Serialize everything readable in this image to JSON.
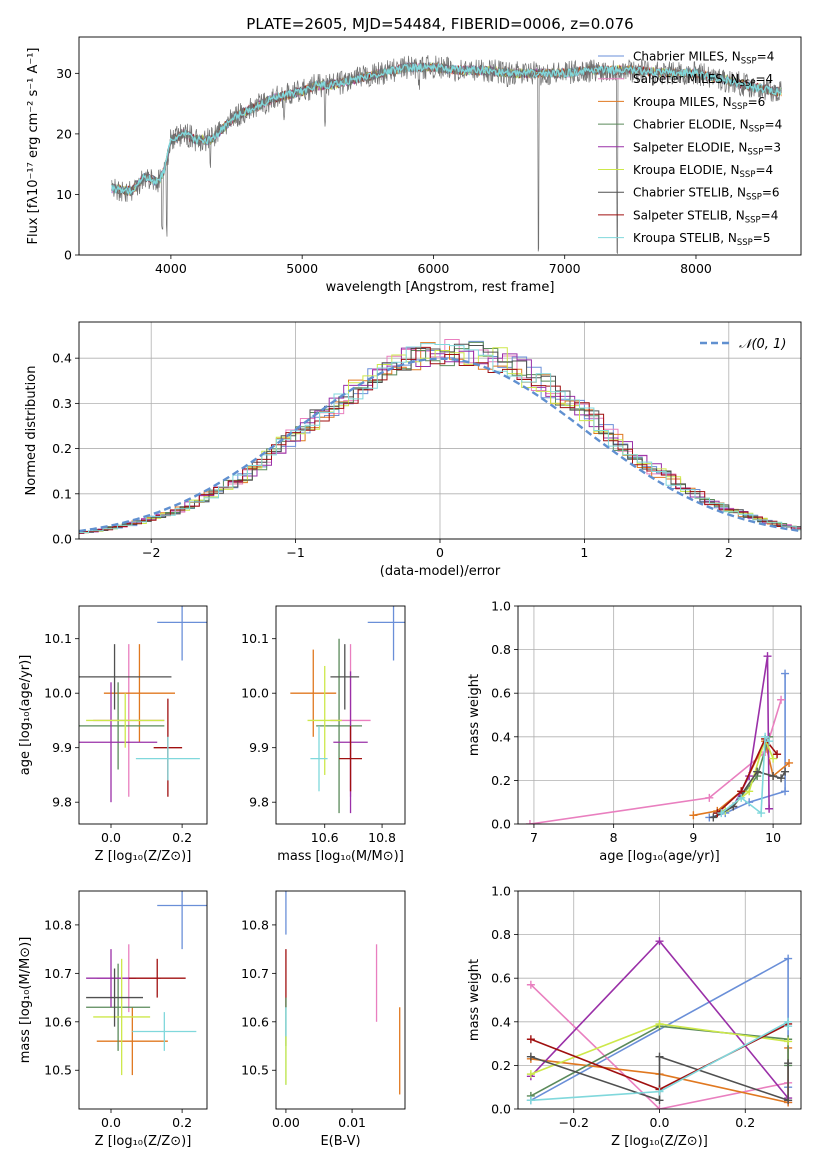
{
  "figure_title": "PLATE=2605, MJD=54484, FIBERID=0006, z=0.076",
  "colors": {
    "chabrier_miles": "#6a8fd8",
    "salpeter_miles": "#e97fbf",
    "kroupa_miles": "#e07820",
    "chabrier_elodie": "#5a8a5a",
    "salpeter_elodie": "#9a30a8",
    "kroupa_elodie": "#cde84a",
    "chabrier_stelib": "#505050",
    "salpeter_stelib": "#a01010",
    "kroupa_stelib": "#80d8dc",
    "gaussian": "#6090d0"
  },
  "chart_data": [
    {
      "type": "line",
      "id": "spectrum",
      "title": "PLATE=2605, MJD=54484, FIBERID=0006, z=0.076",
      "xlabel": "wavelength [Angstrom, rest frame]",
      "ylabel": "Flux [fλ10⁻¹⁷ erg cm⁻² s⁻¹ A⁻¹]",
      "xlim": [
        3300,
        8800
      ],
      "ylim": [
        0,
        36
      ],
      "xticks": [
        4000,
        5000,
        6000,
        7000,
        8000
      ],
      "yticks": [
        0,
        10,
        20,
        30
      ],
      "legend_position": "top-right",
      "legend": [
        {
          "label": "Chabrier MILES, N",
          "sub": "SSP",
          "suffix": "=4",
          "color_key": "chabrier_miles"
        },
        {
          "label": "Salpeter MILES, N",
          "sub": "SSP",
          "suffix": "=4",
          "color_key": "salpeter_miles"
        },
        {
          "label": "Kroupa MILES, N",
          "sub": "SSP",
          "suffix": "=6",
          "color_key": "kroupa_miles"
        },
        {
          "label": "Chabrier ELODIE, N",
          "sub": "SSP",
          "suffix": "=4",
          "color_key": "chabrier_elodie"
        },
        {
          "label": "Salpeter ELODIE, N",
          "sub": "SSP",
          "suffix": "=3",
          "color_key": "salpeter_elodie"
        },
        {
          "label": "Kroupa ELODIE, N",
          "sub": "SSP",
          "suffix": "=4",
          "color_key": "kroupa_elodie"
        },
        {
          "label": "Chabrier STELIB, N",
          "sub": "SSP",
          "suffix": "=6",
          "color_key": "chabrier_stelib"
        },
        {
          "label": "Salpeter STELIB, N",
          "sub": "SSP",
          "suffix": "=4",
          "color_key": "salpeter_stelib"
        },
        {
          "label": "Kroupa STELIB, N",
          "sub": "SSP",
          "suffix": "=5",
          "color_key": "kroupa_stelib"
        }
      ],
      "continuum": [
        [
          3550,
          11
        ],
        [
          3700,
          10.5
        ],
        [
          3800,
          13
        ],
        [
          3900,
          12
        ],
        [
          3950,
          14
        ],
        [
          4000,
          19
        ],
        [
          4100,
          20
        ],
        [
          4200,
          19
        ],
        [
          4300,
          19
        ],
        [
          4400,
          21
        ],
        [
          4500,
          23
        ],
        [
          4600,
          24
        ],
        [
          4700,
          25
        ],
        [
          4800,
          26
        ],
        [
          4900,
          26.5
        ],
        [
          5000,
          27
        ],
        [
          5100,
          28
        ],
        [
          5200,
          28
        ],
        [
          5400,
          29
        ],
        [
          5600,
          30
        ],
        [
          5800,
          31
        ],
        [
          6000,
          31
        ],
        [
          6200,
          30.5
        ],
        [
          6400,
          30.5
        ],
        [
          6600,
          30
        ],
        [
          6800,
          30
        ],
        [
          7000,
          30
        ],
        [
          7200,
          30.5
        ],
        [
          7500,
          30.5
        ],
        [
          7800,
          30
        ],
        [
          8000,
          30
        ],
        [
          8200,
          29
        ],
        [
          8400,
          28
        ],
        [
          8600,
          27
        ]
      ],
      "features": [
        [
          3934,
          3
        ],
        [
          3968,
          3
        ],
        [
          4300,
          14
        ],
        [
          4861,
          22
        ],
        [
          5175,
          21
        ],
        [
          5890,
          27
        ],
        [
          6563,
          27
        ],
        [
          6800,
          0
        ],
        [
          7400,
          0
        ]
      ]
    },
    {
      "type": "bar",
      "id": "residuals",
      "xlabel": "(data-model)/error",
      "ylabel": "Normed distribution",
      "xlim": [
        -2.5,
        2.5
      ],
      "ylim": [
        0,
        0.48
      ],
      "xticks": [
        -2,
        -1,
        0,
        1,
        2
      ],
      "yticks": [
        0.0,
        0.1,
        0.2,
        0.3,
        0.4
      ],
      "legend_position": "top-right",
      "legend_label": "𝒩(0, 1)",
      "bin_width": 0.1
    },
    {
      "type": "scatter",
      "id": "age_vs_Z",
      "xlabel": "Z [log₁₀(Z/Z⊙)]",
      "ylabel": "age  [log₁₀(age/yr)]",
      "xlim": [
        -0.09,
        0.27
      ],
      "ylim": [
        9.76,
        10.16
      ],
      "xticks": [
        0.0,
        0.2
      ],
      "yticks": [
        9.8,
        9.9,
        10.0,
        10.1
      ],
      "points": [
        {
          "x": 0.2,
          "y": 10.13,
          "ex": 0.07,
          "ey": 0.07,
          "c": "chabrier_miles"
        },
        {
          "x": 0.05,
          "y": 9.95,
          "ex": 0.1,
          "ey": 0.14,
          "c": "salpeter_miles"
        },
        {
          "x": 0.08,
          "y": 10.0,
          "ex": 0.1,
          "ey": 0.09,
          "c": "kroupa_miles"
        },
        {
          "x": 0.02,
          "y": 9.94,
          "ex": 0.13,
          "ey": 0.08,
          "c": "chabrier_elodie"
        },
        {
          "x": 0.0,
          "y": 9.91,
          "ex": 0.13,
          "ey": 0.11,
          "c": "salpeter_elodie"
        },
        {
          "x": 0.04,
          "y": 9.95,
          "ex": 0.11,
          "ey": 0.05,
          "c": "kroupa_elodie"
        },
        {
          "x": 0.01,
          "y": 10.03,
          "ex": 0.16,
          "ey": 0.06,
          "c": "chabrier_stelib"
        },
        {
          "x": 0.16,
          "y": 9.9,
          "ex": 0.04,
          "ey": 0.09,
          "c": "salpeter_stelib"
        },
        {
          "x": 0.16,
          "y": 9.88,
          "ex": 0.09,
          "ey": 0.04,
          "c": "kroupa_stelib"
        }
      ]
    },
    {
      "type": "scatter",
      "id": "age_vs_mass",
      "xlabel": "mass [log₁₀(M/M⊙)]",
      "ylabel": "",
      "xlim": [
        10.43,
        10.88
      ],
      "ylim": [
        9.76,
        10.16
      ],
      "xticks": [
        10.6,
        10.8
      ],
      "yticks": [
        9.8,
        9.9,
        10.0,
        10.1
      ],
      "points": [
        {
          "x": 10.84,
          "y": 10.13,
          "ex": 0.09,
          "ey": 0.07,
          "c": "chabrier_miles"
        },
        {
          "x": 10.69,
          "y": 9.95,
          "ex": 0.07,
          "ey": 0.14,
          "c": "salpeter_miles"
        },
        {
          "x": 10.56,
          "y": 10.0,
          "ex": 0.08,
          "ey": 0.08,
          "c": "kroupa_miles"
        },
        {
          "x": 10.65,
          "y": 9.94,
          "ex": 0.08,
          "ey": 0.16,
          "c": "chabrier_elodie"
        },
        {
          "x": 10.69,
          "y": 9.91,
          "ex": 0.06,
          "ey": 0.13,
          "c": "salpeter_elodie"
        },
        {
          "x": 10.6,
          "y": 9.95,
          "ex": 0.06,
          "ey": 0.1,
          "c": "kroupa_elodie"
        },
        {
          "x": 10.67,
          "y": 10.03,
          "ex": 0.05,
          "ey": 0.06,
          "c": "chabrier_stelib"
        },
        {
          "x": 10.69,
          "y": 9.88,
          "ex": 0.04,
          "ey": 0.06,
          "c": "salpeter_stelib"
        },
        {
          "x": 10.58,
          "y": 9.88,
          "ex": 0.03,
          "ey": 0.06,
          "c": "kroupa_stelib"
        }
      ]
    },
    {
      "type": "line",
      "id": "mass_weight_vs_age",
      "xlabel": "age  [log₁₀(age/yr)]",
      "ylabel": "mass weight",
      "xlim": [
        6.8,
        10.35
      ],
      "ylim": [
        0,
        1.0
      ],
      "xticks": [
        7,
        8,
        9,
        10
      ],
      "yticks": [
        0.0,
        0.2,
        0.4,
        0.6,
        0.8,
        1.0
      ],
      "series": [
        {
          "c": "chabrier_miles",
          "x": [
            9.2,
            9.4,
            9.7,
            10.15,
            10.15
          ],
          "y": [
            0.03,
            0.05,
            0.1,
            0.15,
            0.69
          ]
        },
        {
          "c": "salpeter_miles",
          "x": [
            6.95,
            9.2,
            9.9,
            10.1
          ],
          "y": [
            0.0,
            0.12,
            0.33,
            0.57
          ]
        },
        {
          "c": "kroupa_miles",
          "x": [
            9.0,
            9.3,
            9.6,
            9.9,
            10.0,
            10.2
          ],
          "y": [
            0.04,
            0.06,
            0.15,
            0.38,
            0.22,
            0.28
          ]
        },
        {
          "c": "chabrier_elodie",
          "x": [
            9.3,
            9.5,
            9.8,
            9.95
          ],
          "y": [
            0.05,
            0.08,
            0.22,
            0.4
          ]
        },
        {
          "c": "salpeter_elodie",
          "x": [
            9.5,
            9.7,
            9.93,
            9.95
          ],
          "y": [
            0.08,
            0.22,
            0.77,
            0.07
          ]
        },
        {
          "c": "kroupa_elodie",
          "x": [
            9.4,
            9.7,
            9.9,
            10.0
          ],
          "y": [
            0.06,
            0.15,
            0.39,
            0.3
          ]
        },
        {
          "c": "chabrier_stelib",
          "x": [
            9.25,
            9.5,
            9.8,
            10.0,
            10.1,
            10.15
          ],
          "y": [
            0.03,
            0.08,
            0.24,
            0.22,
            0.21,
            0.24
          ]
        },
        {
          "c": "salpeter_stelib",
          "x": [
            9.3,
            9.6,
            9.9,
            10.05
          ],
          "y": [
            0.05,
            0.15,
            0.39,
            0.32
          ]
        },
        {
          "c": "kroupa_stelib",
          "x": [
            9.35,
            9.6,
            9.85,
            9.9,
            9.95
          ],
          "y": [
            0.05,
            0.12,
            0.05,
            0.4,
            0.38
          ]
        }
      ]
    },
    {
      "type": "scatter",
      "id": "mass_vs_Z",
      "xlabel": "Z [log₁₀(Z/Z⊙)]",
      "ylabel": "mass [log₁₀(M/M⊙)]",
      "xlim": [
        -0.09,
        0.27
      ],
      "ylim": [
        10.42,
        10.87
      ],
      "xticks": [
        0.0,
        0.2
      ],
      "yticks": [
        10.5,
        10.6,
        10.7,
        10.8
      ],
      "points": [
        {
          "x": 0.2,
          "y": 10.84,
          "ex": 0.07,
          "ey": 0.09,
          "c": "chabrier_miles"
        },
        {
          "x": 0.05,
          "y": 10.69,
          "ex": 0.09,
          "ey": 0.07,
          "c": "salpeter_miles"
        },
        {
          "x": 0.06,
          "y": 10.56,
          "ex": 0.1,
          "ey": 0.07,
          "c": "kroupa_miles"
        },
        {
          "x": 0.02,
          "y": 10.63,
          "ex": 0.09,
          "ey": 0.09,
          "c": "chabrier_elodie"
        },
        {
          "x": 0.0,
          "y": 10.69,
          "ex": 0.07,
          "ey": 0.06,
          "c": "salpeter_elodie"
        },
        {
          "x": 0.03,
          "y": 10.61,
          "ex": 0.08,
          "ey": 0.12,
          "c": "kroupa_elodie"
        },
        {
          "x": 0.01,
          "y": 10.65,
          "ex": 0.08,
          "ey": 0.06,
          "c": "chabrier_stelib"
        },
        {
          "x": 0.13,
          "y": 10.69,
          "ex": 0.08,
          "ey": 0.04,
          "c": "salpeter_stelib"
        },
        {
          "x": 0.15,
          "y": 10.58,
          "ex": 0.09,
          "ey": 0.04,
          "c": "kroupa_stelib"
        }
      ]
    },
    {
      "type": "scatter",
      "id": "mass_vs_ebv",
      "xlabel": "E(B-V)",
      "ylabel": "",
      "xlim": [
        -0.0015,
        0.018
      ],
      "ylim": [
        10.42,
        10.87
      ],
      "xticks": [
        0.0,
        0.01
      ],
      "yticks": [
        10.5,
        10.6,
        10.7,
        10.8
      ],
      "points": [
        {
          "x": 0.0,
          "y": 10.84,
          "ex": 0,
          "ey": 0.06,
          "c": "chabrier_miles"
        },
        {
          "x": 0.0,
          "y": 10.69,
          "ex": 0,
          "ey": 0.06,
          "c": "salpeter_stelib"
        },
        {
          "x": 0.0,
          "y": 10.6,
          "ex": 0,
          "ey": 0.05,
          "c": "chabrier_elodie"
        },
        {
          "x": 0.0,
          "y": 10.55,
          "ex": 0,
          "ey": 0.08,
          "c": "kroupa_stelib"
        },
        {
          "x": 0.0,
          "y": 10.52,
          "ex": 0,
          "ey": 0.05,
          "c": "kroupa_elodie"
        },
        {
          "x": 0.0137,
          "y": 10.68,
          "ex": 0,
          "ey": 0.08,
          "c": "salpeter_miles"
        },
        {
          "x": 0.0172,
          "y": 10.54,
          "ex": 0,
          "ey": 0.09,
          "c": "kroupa_miles"
        }
      ]
    },
    {
      "type": "line",
      "id": "mass_weight_vs_Z",
      "xlabel": "Z [log₁₀(Z/Z⊙)]",
      "ylabel": "mass weight",
      "xlim": [
        -0.33,
        0.33
      ],
      "ylim": [
        0,
        1.0
      ],
      "xticks": [
        -0.2,
        0.0,
        0.2
      ],
      "yticks": [
        0.0,
        0.2,
        0.4,
        0.6,
        0.8,
        1.0
      ],
      "series": [
        {
          "c": "chabrier_miles",
          "x": [
            -0.3,
            0.3,
            0.3
          ],
          "y": [
            0.04,
            0.69,
            0.1
          ]
        },
        {
          "c": "salpeter_miles",
          "x": [
            -0.3,
            0.0,
            0.3,
            0.3
          ],
          "y": [
            0.57,
            0.0,
            0.12,
            0.03
          ]
        },
        {
          "c": "kroupa_miles",
          "x": [
            -0.3,
            0.0,
            0.3,
            0.3
          ],
          "y": [
            0.23,
            0.16,
            0.03,
            0.28
          ]
        },
        {
          "c": "chabrier_elodie",
          "x": [
            -0.3,
            0.0,
            0.3,
            0.3
          ],
          "y": [
            0.06,
            0.38,
            0.32,
            0.2
          ]
        },
        {
          "c": "salpeter_elodie",
          "x": [
            -0.3,
            0.0,
            0.3
          ],
          "y": [
            0.15,
            0.77,
            0.05
          ]
        },
        {
          "c": "kroupa_elodie",
          "x": [
            -0.3,
            0.0,
            0.3
          ],
          "y": [
            0.16,
            0.39,
            0.31
          ]
        },
        {
          "c": "chabrier_stelib",
          "x": [
            -0.3,
            0.0,
            0.0,
            0.3,
            0.3
          ],
          "y": [
            0.24,
            0.04,
            0.24,
            0.04,
            0.21
          ]
        },
        {
          "c": "salpeter_stelib",
          "x": [
            -0.3,
            0.0,
            0.3
          ],
          "y": [
            0.32,
            0.09,
            0.39
          ]
        },
        {
          "c": "kroupa_stelib",
          "x": [
            -0.3,
            0.0,
            0.3,
            0.3
          ],
          "y": [
            0.04,
            0.08,
            0.4,
            0.38
          ]
        }
      ]
    }
  ]
}
